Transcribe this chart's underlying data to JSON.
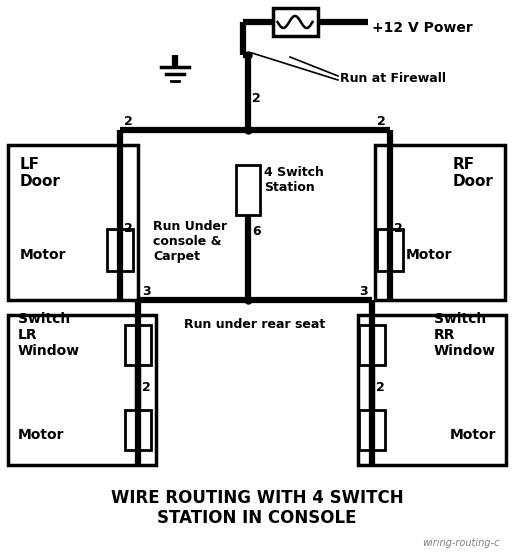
{
  "title": "WIRE ROUTING WITH 4 SWITCH\nSTATION IN CONSOLE",
  "watermark": "wiring-routing-c",
  "bg_color": "#ffffff",
  "labels": {
    "power": "+12 V Power",
    "run_firewall": "Run at Firewall",
    "lf_door": "LF\nDoor",
    "motor_lf": "Motor",
    "rf_door": "RF\nDoor",
    "motor_rf": "Motor",
    "switch_station": "4 Switch\nStation",
    "run_console": "Run Under\nconsole &\nCarpet",
    "lr_window": "Switch\nLR\nWindow",
    "motor_lr": "Motor",
    "rr_window": "Switch\nRR\nWindow",
    "motor_rr": "Motor",
    "run_rear": "Run under rear seat"
  }
}
